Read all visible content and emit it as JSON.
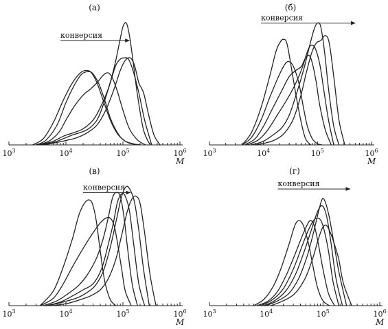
{
  "chart_data": [
    {
      "type": "line",
      "panel_label": "(а)",
      "xlabel": "M",
      "x_scale": "log",
      "xlim": [
        1000,
        1000000
      ],
      "x_ticks": [
        {
          "base": "10",
          "exp": "3",
          "value": 1000
        },
        {
          "base": "10",
          "exp": "4",
          "value": 10000
        },
        {
          "base": "10",
          "exp": "5",
          "value": 100000
        },
        {
          "base": "10",
          "exp": "6",
          "value": 1000000
        }
      ],
      "ylim": [
        0,
        1
      ],
      "y_axis_visible": false,
      "annotation": {
        "text": "конверсия",
        "arrow": "right",
        "arrow_x": [
          8000,
          130000
        ],
        "arrow_y": 0.84
      },
      "series": [
        {
          "x": [
            2600,
            4000,
            6000,
            9000,
            13000,
            18000,
            23000,
            28000,
            35000,
            45000,
            60000,
            80000,
            110000,
            140000,
            200000
          ],
          "y": [
            0.0,
            0.05,
            0.18,
            0.36,
            0.5,
            0.58,
            0.6,
            0.58,
            0.5,
            0.36,
            0.2,
            0.09,
            0.03,
            0.01,
            0.0
          ]
        },
        {
          "x": [
            3000,
            4500,
            7000,
            10000,
            14000,
            19000,
            25000,
            30000,
            38000,
            48000,
            62000,
            85000,
            110000,
            150000,
            200000
          ],
          "y": [
            0.0,
            0.04,
            0.16,
            0.34,
            0.48,
            0.57,
            0.59,
            0.57,
            0.49,
            0.36,
            0.2,
            0.08,
            0.03,
            0.01,
            0.0
          ]
        },
        {
          "x": [
            3200,
            5000,
            7500,
            10000,
            14000,
            20000,
            27000,
            35000,
            45000,
            55000,
            65000,
            80000,
            100000,
            130000,
            180000,
            250000
          ],
          "y": [
            0.0,
            0.03,
            0.1,
            0.2,
            0.31,
            0.4,
            0.45,
            0.5,
            0.56,
            0.58,
            0.54,
            0.43,
            0.28,
            0.13,
            0.04,
            0.0
          ]
        },
        {
          "x": [
            3500,
            6000,
            9000,
            14000,
            20000,
            30000,
            40000,
            55000,
            70000,
            85000,
            100000,
            115000,
            130000,
            150000,
            180000,
            230000,
            300000
          ],
          "y": [
            0.0,
            0.03,
            0.07,
            0.1,
            0.13,
            0.2,
            0.3,
            0.45,
            0.62,
            0.8,
            0.95,
            0.98,
            0.88,
            0.68,
            0.4,
            0.12,
            0.0
          ]
        },
        {
          "x": [
            3500,
            6000,
            9000,
            13000,
            18000,
            25000,
            35000,
            45000,
            60000,
            75000,
            90000,
            105000,
            125000,
            150000,
            190000,
            240000,
            320000
          ],
          "y": [
            0.0,
            0.02,
            0.05,
            0.08,
            0.1,
            0.13,
            0.2,
            0.32,
            0.5,
            0.64,
            0.69,
            0.7,
            0.69,
            0.6,
            0.42,
            0.2,
            0.0
          ]
        },
        {
          "x": [
            4000,
            7000,
            11000,
            16000,
            24000,
            35000,
            50000,
            70000,
            90000,
            110000,
            135000,
            160000,
            190000,
            230000,
            280000,
            350000,
            450000
          ],
          "y": [
            0.0,
            0.02,
            0.04,
            0.06,
            0.1,
            0.16,
            0.28,
            0.45,
            0.6,
            0.68,
            0.7,
            0.64,
            0.5,
            0.42,
            0.25,
            0.08,
            0.0
          ]
        }
      ]
    },
    {
      "type": "line",
      "panel_label": "(б)",
      "xlabel": "M",
      "x_scale": "log",
      "xlim": [
        1000,
        1000000
      ],
      "x_ticks": [
        {
          "base": "10",
          "exp": "3",
          "value": 1000
        },
        {
          "base": "10",
          "exp": "4",
          "value": 10000
        },
        {
          "base": "10",
          "exp": "5",
          "value": 100000
        },
        {
          "base": "10",
          "exp": "6",
          "value": 1000000
        }
      ],
      "ylim": [
        0,
        1
      ],
      "y_axis_visible": false,
      "annotation": {
        "text": "конверсия",
        "arrow": "right",
        "arrow_x": [
          9000,
          500000
        ],
        "arrow_y": 0.98
      },
      "series": [
        {
          "x": [
            4000,
            6000,
            9000,
            13000,
            17000,
            20000,
            23000,
            27000,
            32000,
            40000,
            50000,
            60000,
            75000
          ],
          "y": [
            0.0,
            0.1,
            0.3,
            0.55,
            0.75,
            0.82,
            0.85,
            0.82,
            0.65,
            0.4,
            0.18,
            0.05,
            0.0
          ]
        },
        {
          "x": [
            4000,
            6000,
            9000,
            13000,
            19000,
            25000,
            30000,
            36000,
            45000,
            55000,
            65000,
            80000,
            100000,
            120000
          ],
          "y": [
            0.0,
            0.06,
            0.2,
            0.38,
            0.55,
            0.65,
            0.67,
            0.63,
            0.5,
            0.3,
            0.15,
            0.05,
            0.01,
            0.0
          ]
        },
        {
          "x": [
            4500,
            7000,
            10000,
            15000,
            22000,
            30000,
            40000,
            50000,
            60000,
            70000,
            80000,
            95000,
            110000,
            140000,
            180000
          ],
          "y": [
            0.0,
            0.05,
            0.15,
            0.3,
            0.44,
            0.55,
            0.6,
            0.63,
            0.7,
            0.72,
            0.66,
            0.5,
            0.32,
            0.12,
            0.0
          ]
        },
        {
          "x": [
            5000,
            8000,
            12000,
            18000,
            26000,
            35000,
            45000,
            55000,
            65000,
            75000,
            90000,
            110000,
            130000,
            160000,
            200000
          ],
          "y": [
            0.0,
            0.04,
            0.12,
            0.24,
            0.35,
            0.45,
            0.55,
            0.65,
            0.75,
            0.8,
            0.78,
            0.65,
            0.45,
            0.2,
            0.0
          ]
        },
        {
          "x": [
            6000,
            10000,
            15000,
            22000,
            30000,
            40000,
            55000,
            70000,
            85000,
            100000,
            115000,
            135000,
            160000,
            200000,
            250000
          ],
          "y": [
            0.0,
            0.03,
            0.08,
            0.14,
            0.24,
            0.4,
            0.6,
            0.78,
            0.92,
            0.98,
            0.95,
            0.75,
            0.45,
            0.15,
            0.0
          ]
        },
        {
          "x": [
            7000,
            12000,
            18000,
            25000,
            35000,
            48000,
            62000,
            78000,
            95000,
            115000,
            140000,
            165000,
            200000,
            250000,
            320000
          ],
          "y": [
            0.0,
            0.02,
            0.05,
            0.1,
            0.2,
            0.38,
            0.58,
            0.74,
            0.82,
            0.84,
            0.88,
            0.82,
            0.55,
            0.2,
            0.0
          ]
        }
      ]
    },
    {
      "type": "line",
      "panel_label": "(в)",
      "xlabel": "M",
      "x_scale": "log",
      "xlim": [
        1000,
        1000000
      ],
      "x_ticks": [
        {
          "base": "10",
          "exp": "3",
          "value": 1000
        },
        {
          "base": "10",
          "exp": "4",
          "value": 10000
        },
        {
          "base": "10",
          "exp": "5",
          "value": 100000
        },
        {
          "base": "10",
          "exp": "6",
          "value": 1000000
        }
      ],
      "ylim": [
        0,
        1
      ],
      "y_axis_visible": false,
      "annotation": {
        "text": "конверсия",
        "arrow": "right",
        "arrow_x": [
          20000,
          135000
        ],
        "arrow_y": 0.93
      },
      "series": [
        {
          "x": [
            3500,
            6000,
            9000,
            13000,
            17000,
            21000,
            25000,
            29000,
            34000,
            40000,
            48000,
            60000,
            75000
          ],
          "y": [
            0.0,
            0.12,
            0.32,
            0.55,
            0.75,
            0.84,
            0.87,
            0.84,
            0.7,
            0.45,
            0.2,
            0.05,
            0.0
          ]
        },
        {
          "x": [
            3500,
            6000,
            9000,
            13000,
            20000,
            30000,
            40000,
            50000,
            60000,
            70000,
            80000,
            95000,
            110000,
            140000
          ],
          "y": [
            0.0,
            0.06,
            0.18,
            0.32,
            0.47,
            0.6,
            0.68,
            0.72,
            0.72,
            0.66,
            0.52,
            0.3,
            0.12,
            0.0
          ]
        },
        {
          "x": [
            4000,
            7000,
            11000,
            17000,
            25000,
            35000,
            45000,
            55000,
            65000,
            75000,
            90000,
            105000,
            120000,
            145000,
            180000
          ],
          "y": [
            0.0,
            0.04,
            0.1,
            0.17,
            0.27,
            0.4,
            0.55,
            0.72,
            0.88,
            0.93,
            0.9,
            0.72,
            0.48,
            0.18,
            0.0
          ]
        },
        {
          "x": [
            4500,
            8000,
            13000,
            20000,
            30000,
            42000,
            55000,
            68000,
            80000,
            95000,
            110000,
            130000,
            155000,
            190000,
            240000
          ],
          "y": [
            0.0,
            0.03,
            0.08,
            0.13,
            0.18,
            0.3,
            0.5,
            0.68,
            0.85,
            0.92,
            0.9,
            0.78,
            0.5,
            0.18,
            0.0
          ]
        },
        {
          "x": [
            5000,
            9000,
            15000,
            22000,
            32000,
            45000,
            60000,
            78000,
            95000,
            115000,
            135000,
            160000,
            190000,
            230000,
            290000
          ],
          "y": [
            0.0,
            0.03,
            0.06,
            0.1,
            0.16,
            0.28,
            0.48,
            0.72,
            0.9,
            0.98,
            0.95,
            0.85,
            0.62,
            0.3,
            0.0
          ]
        },
        {
          "x": [
            6000,
            11000,
            18000,
            27000,
            40000,
            55000,
            75000,
            95000,
            120000,
            145000,
            170000,
            200000,
            240000,
            300000,
            380000
          ],
          "y": [
            0.0,
            0.02,
            0.05,
            0.08,
            0.13,
            0.22,
            0.38,
            0.58,
            0.78,
            0.88,
            0.9,
            0.84,
            0.6,
            0.25,
            0.0
          ]
        }
      ]
    },
    {
      "type": "line",
      "panel_label": "(г)",
      "xlabel": "M",
      "x_scale": "log",
      "xlim": [
        1000,
        1000000
      ],
      "x_ticks": [
        {
          "base": "10",
          "exp": "3",
          "value": 1000
        },
        {
          "base": "10",
          "exp": "4",
          "value": 10000
        },
        {
          "base": "10",
          "exp": "5",
          "value": 100000
        },
        {
          "base": "10",
          "exp": "6",
          "value": 1000000
        }
      ],
      "ylim": [
        0,
        1
      ],
      "y_axis_visible": false,
      "annotation": {
        "text": "конверсия",
        "arrow": "right",
        "arrow_x": [
          16000,
          300000
        ],
        "arrow_y": 0.96
      },
      "series": [
        {
          "x": [
            6000,
            9000,
            13000,
            18000,
            25000,
            32000,
            38000,
            45000,
            55000,
            65000,
            80000,
            100000,
            130000
          ],
          "y": [
            0.0,
            0.05,
            0.15,
            0.3,
            0.5,
            0.66,
            0.7,
            0.66,
            0.52,
            0.35,
            0.15,
            0.04,
            0.0
          ]
        },
        {
          "x": [
            7000,
            11000,
            16000,
            23000,
            32000,
            42000,
            52000,
            60000,
            70000,
            82000,
            100000,
            125000,
            160000
          ],
          "y": [
            0.0,
            0.04,
            0.12,
            0.26,
            0.42,
            0.56,
            0.66,
            0.7,
            0.66,
            0.52,
            0.3,
            0.1,
            0.0
          ]
        },
        {
          "x": [
            8000,
            13000,
            20000,
            30000,
            42000,
            55000,
            68000,
            80000,
            92000,
            105000,
            125000,
            150000,
            190000
          ],
          "y": [
            0.0,
            0.05,
            0.14,
            0.3,
            0.48,
            0.62,
            0.7,
            0.72,
            0.7,
            0.62,
            0.45,
            0.2,
            0.0
          ]
        },
        {
          "x": [
            9000,
            14000,
            22000,
            33000,
            47000,
            62000,
            78000,
            92000,
            105000,
            120000,
            140000,
            170000,
            220000
          ],
          "y": [
            0.0,
            0.04,
            0.12,
            0.26,
            0.45,
            0.62,
            0.76,
            0.82,
            0.8,
            0.7,
            0.5,
            0.22,
            0.0
          ]
        },
        {
          "x": [
            10000,
            16000,
            25000,
            37000,
            52000,
            68000,
            84000,
            98000,
            112000,
            130000,
            155000,
            190000,
            260000
          ],
          "y": [
            0.0,
            0.04,
            0.1,
            0.22,
            0.4,
            0.6,
            0.78,
            0.88,
            0.84,
            0.72,
            0.52,
            0.28,
            0.0
          ]
        },
        {
          "x": [
            12000,
            20000,
            32000,
            48000,
            65000,
            82000,
            98000,
            115000,
            135000,
            160000,
            190000,
            230000,
            320000
          ],
          "y": [
            0.0,
            0.04,
            0.1,
            0.22,
            0.38,
            0.54,
            0.64,
            0.66,
            0.6,
            0.5,
            0.38,
            0.18,
            0.0
          ]
        }
      ]
    }
  ]
}
